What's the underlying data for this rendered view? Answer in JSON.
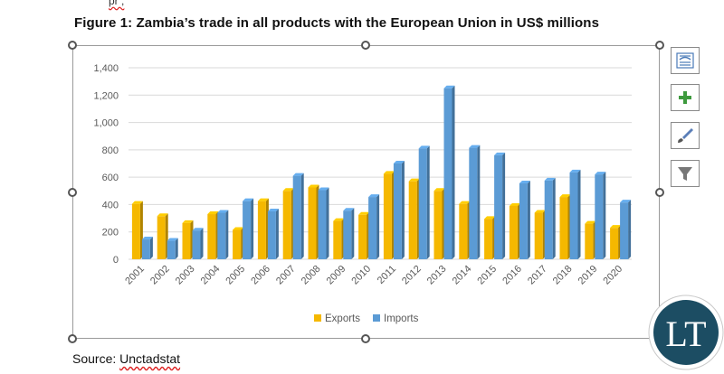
{
  "page": {
    "top_text": "pr , ",
    "figure_title": "Figure 1: Zambia’s trade in all products with the European Union in US$ millions",
    "source_label": "Source: ",
    "source_value": "Unctadstat",
    "logo_text": "LT"
  },
  "side_buttons": [
    {
      "name": "layout-options-icon"
    },
    {
      "name": "chart-elements-icon"
    },
    {
      "name": "chart-styles-icon"
    },
    {
      "name": "chart-filters-icon"
    }
  ],
  "colors": {
    "exports": "#f5b800",
    "imports": "#5b9bd5",
    "gridline": "#d9d9d9",
    "logo": "#1c4d63"
  },
  "chart_data": {
    "type": "bar",
    "categories": [
      "2001",
      "2002",
      "2003",
      "2004",
      "2005",
      "2006",
      "2007",
      "2008",
      "2009",
      "2010",
      "2011",
      "2012",
      "2013",
      "2014",
      "2015",
      "2016",
      "2017",
      "2018",
      "2019",
      "2020"
    ],
    "series": [
      {
        "name": "Exports",
        "color": "#f5b800",
        "values": [
          405,
          315,
          265,
          330,
          215,
          425,
          500,
          525,
          280,
          325,
          625,
          570,
          500,
          405,
          295,
          390,
          340,
          455,
          260,
          230
        ]
      },
      {
        "name": "Imports",
        "color": "#5b9bd5",
        "values": [
          145,
          135,
          210,
          340,
          425,
          350,
          610,
          505,
          355,
          455,
          700,
          810,
          1250,
          815,
          760,
          555,
          575,
          635,
          620,
          415
        ]
      }
    ],
    "yticks": [
      "0",
      "200",
      "400",
      "600",
      "800",
      "1,000",
      "1,200",
      "1,400"
    ],
    "ylim": [
      0,
      1400
    ],
    "grid": true,
    "legend": "bottom",
    "title": "",
    "xlabel": "",
    "ylabel": ""
  }
}
